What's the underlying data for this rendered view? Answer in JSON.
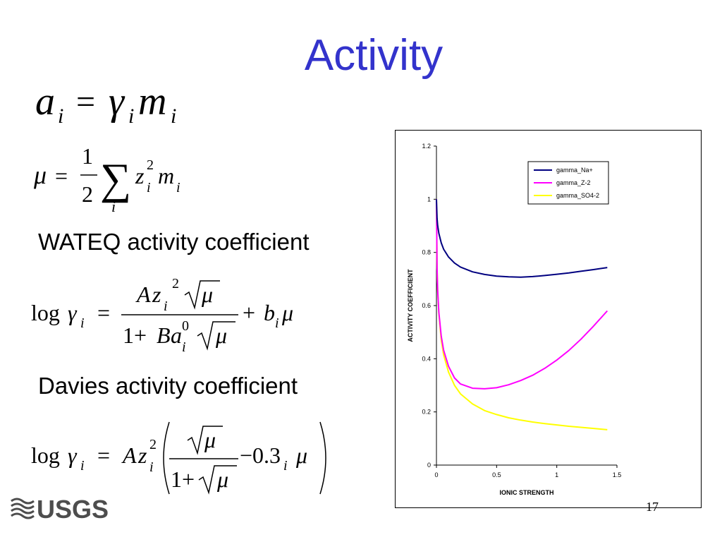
{
  "slide": {
    "title": "Activity",
    "heading_wateq": "WATEQ activity coefficient",
    "heading_davies": "Davies activity coefficient",
    "page_number": "17",
    "logo_text": "USGS"
  },
  "equations": {
    "activity": {
      "a": "a",
      "i": "i",
      "eq": "=",
      "gamma": "γ",
      "m": "m"
    },
    "ionic_strength": {
      "mu": "μ",
      "eq": "=",
      "num": "1",
      "den": "2",
      "sum": "∑",
      "i": "i",
      "z": "z",
      "exp": "2",
      "m": "m"
    },
    "wateq": {
      "log": "log",
      "gamma": "γ",
      "i": "i",
      "eq": "=",
      "A": "A",
      "z": "z",
      "exp": "2",
      "mu": "μ",
      "one_plus": "1+",
      "B": "B",
      "a": "a",
      "zero": "0",
      "plus": "+",
      "b": "b"
    },
    "davies": {
      "log": "log",
      "gamma": "γ",
      "i": "i",
      "eq": "=",
      "A": "A",
      "z": "z",
      "exp": "2",
      "mu": "μ",
      "one_plus": "1+",
      "minus_const": "−0.3"
    }
  },
  "colors": {
    "title": "#3333cc",
    "series_na": "#000080",
    "series_z2": "#ff00ff",
    "series_so4": "#ffff00"
  },
  "chart_data": {
    "type": "line",
    "xlabel": "IONIC STRENGTH",
    "ylabel": "ACTIVITY COEFFICIENT",
    "xlim": [
      0,
      1.5
    ],
    "ylim": [
      0,
      1.2
    ],
    "xticks": [
      0,
      0.5,
      1,
      1.5
    ],
    "xtick_labels": [
      "0",
      "0.5",
      "1",
      "1.5"
    ],
    "yticks": [
      0,
      0.2,
      0.4,
      0.6,
      0.8,
      1,
      1.2
    ],
    "ytick_labels": [
      "0",
      "0.2",
      "0.4",
      "0.6",
      "0.8",
      "1",
      "1.2"
    ],
    "grid": false,
    "legend_position": "top-right",
    "series": [
      {
        "name": "gamma_Na+",
        "color": "#000080",
        "x": [
          0,
          0.005,
          0.01,
          0.02,
          0.04,
          0.06,
          0.1,
          0.15,
          0.2,
          0.3,
          0.4,
          0.5,
          0.6,
          0.7,
          0.8,
          0.9,
          1.0,
          1.1,
          1.2,
          1.3,
          1.42
        ],
        "y": [
          1.0,
          0.928,
          0.902,
          0.872,
          0.836,
          0.812,
          0.783,
          0.76,
          0.745,
          0.727,
          0.717,
          0.711,
          0.708,
          0.707,
          0.709,
          0.713,
          0.718,
          0.723,
          0.729,
          0.735,
          0.743
        ]
      },
      {
        "name": "gamma_Z-2",
        "color": "#ff00ff",
        "x": [
          0,
          0.005,
          0.01,
          0.02,
          0.04,
          0.06,
          0.1,
          0.15,
          0.2,
          0.3,
          0.4,
          0.5,
          0.6,
          0.7,
          0.8,
          0.9,
          1.0,
          1.1,
          1.2,
          1.3,
          1.42
        ],
        "y": [
          1.0,
          0.74,
          0.66,
          0.575,
          0.485,
          0.432,
          0.372,
          0.328,
          0.305,
          0.289,
          0.287,
          0.291,
          0.302,
          0.318,
          0.338,
          0.364,
          0.395,
          0.431,
          0.473,
          0.52,
          0.58
        ]
      },
      {
        "name": "gamma_SO4-2",
        "color": "#ffff00",
        "x": [
          0,
          0.005,
          0.01,
          0.02,
          0.04,
          0.06,
          0.1,
          0.15,
          0.2,
          0.3,
          0.4,
          0.5,
          0.6,
          0.7,
          0.8,
          0.9,
          1.0,
          1.1,
          1.2,
          1.3,
          1.42
        ],
        "y": [
          1.0,
          0.74,
          0.66,
          0.57,
          0.47,
          0.415,
          0.35,
          0.3,
          0.268,
          0.23,
          0.205,
          0.19,
          0.178,
          0.169,
          0.162,
          0.156,
          0.151,
          0.146,
          0.142,
          0.138,
          0.133
        ]
      }
    ]
  }
}
